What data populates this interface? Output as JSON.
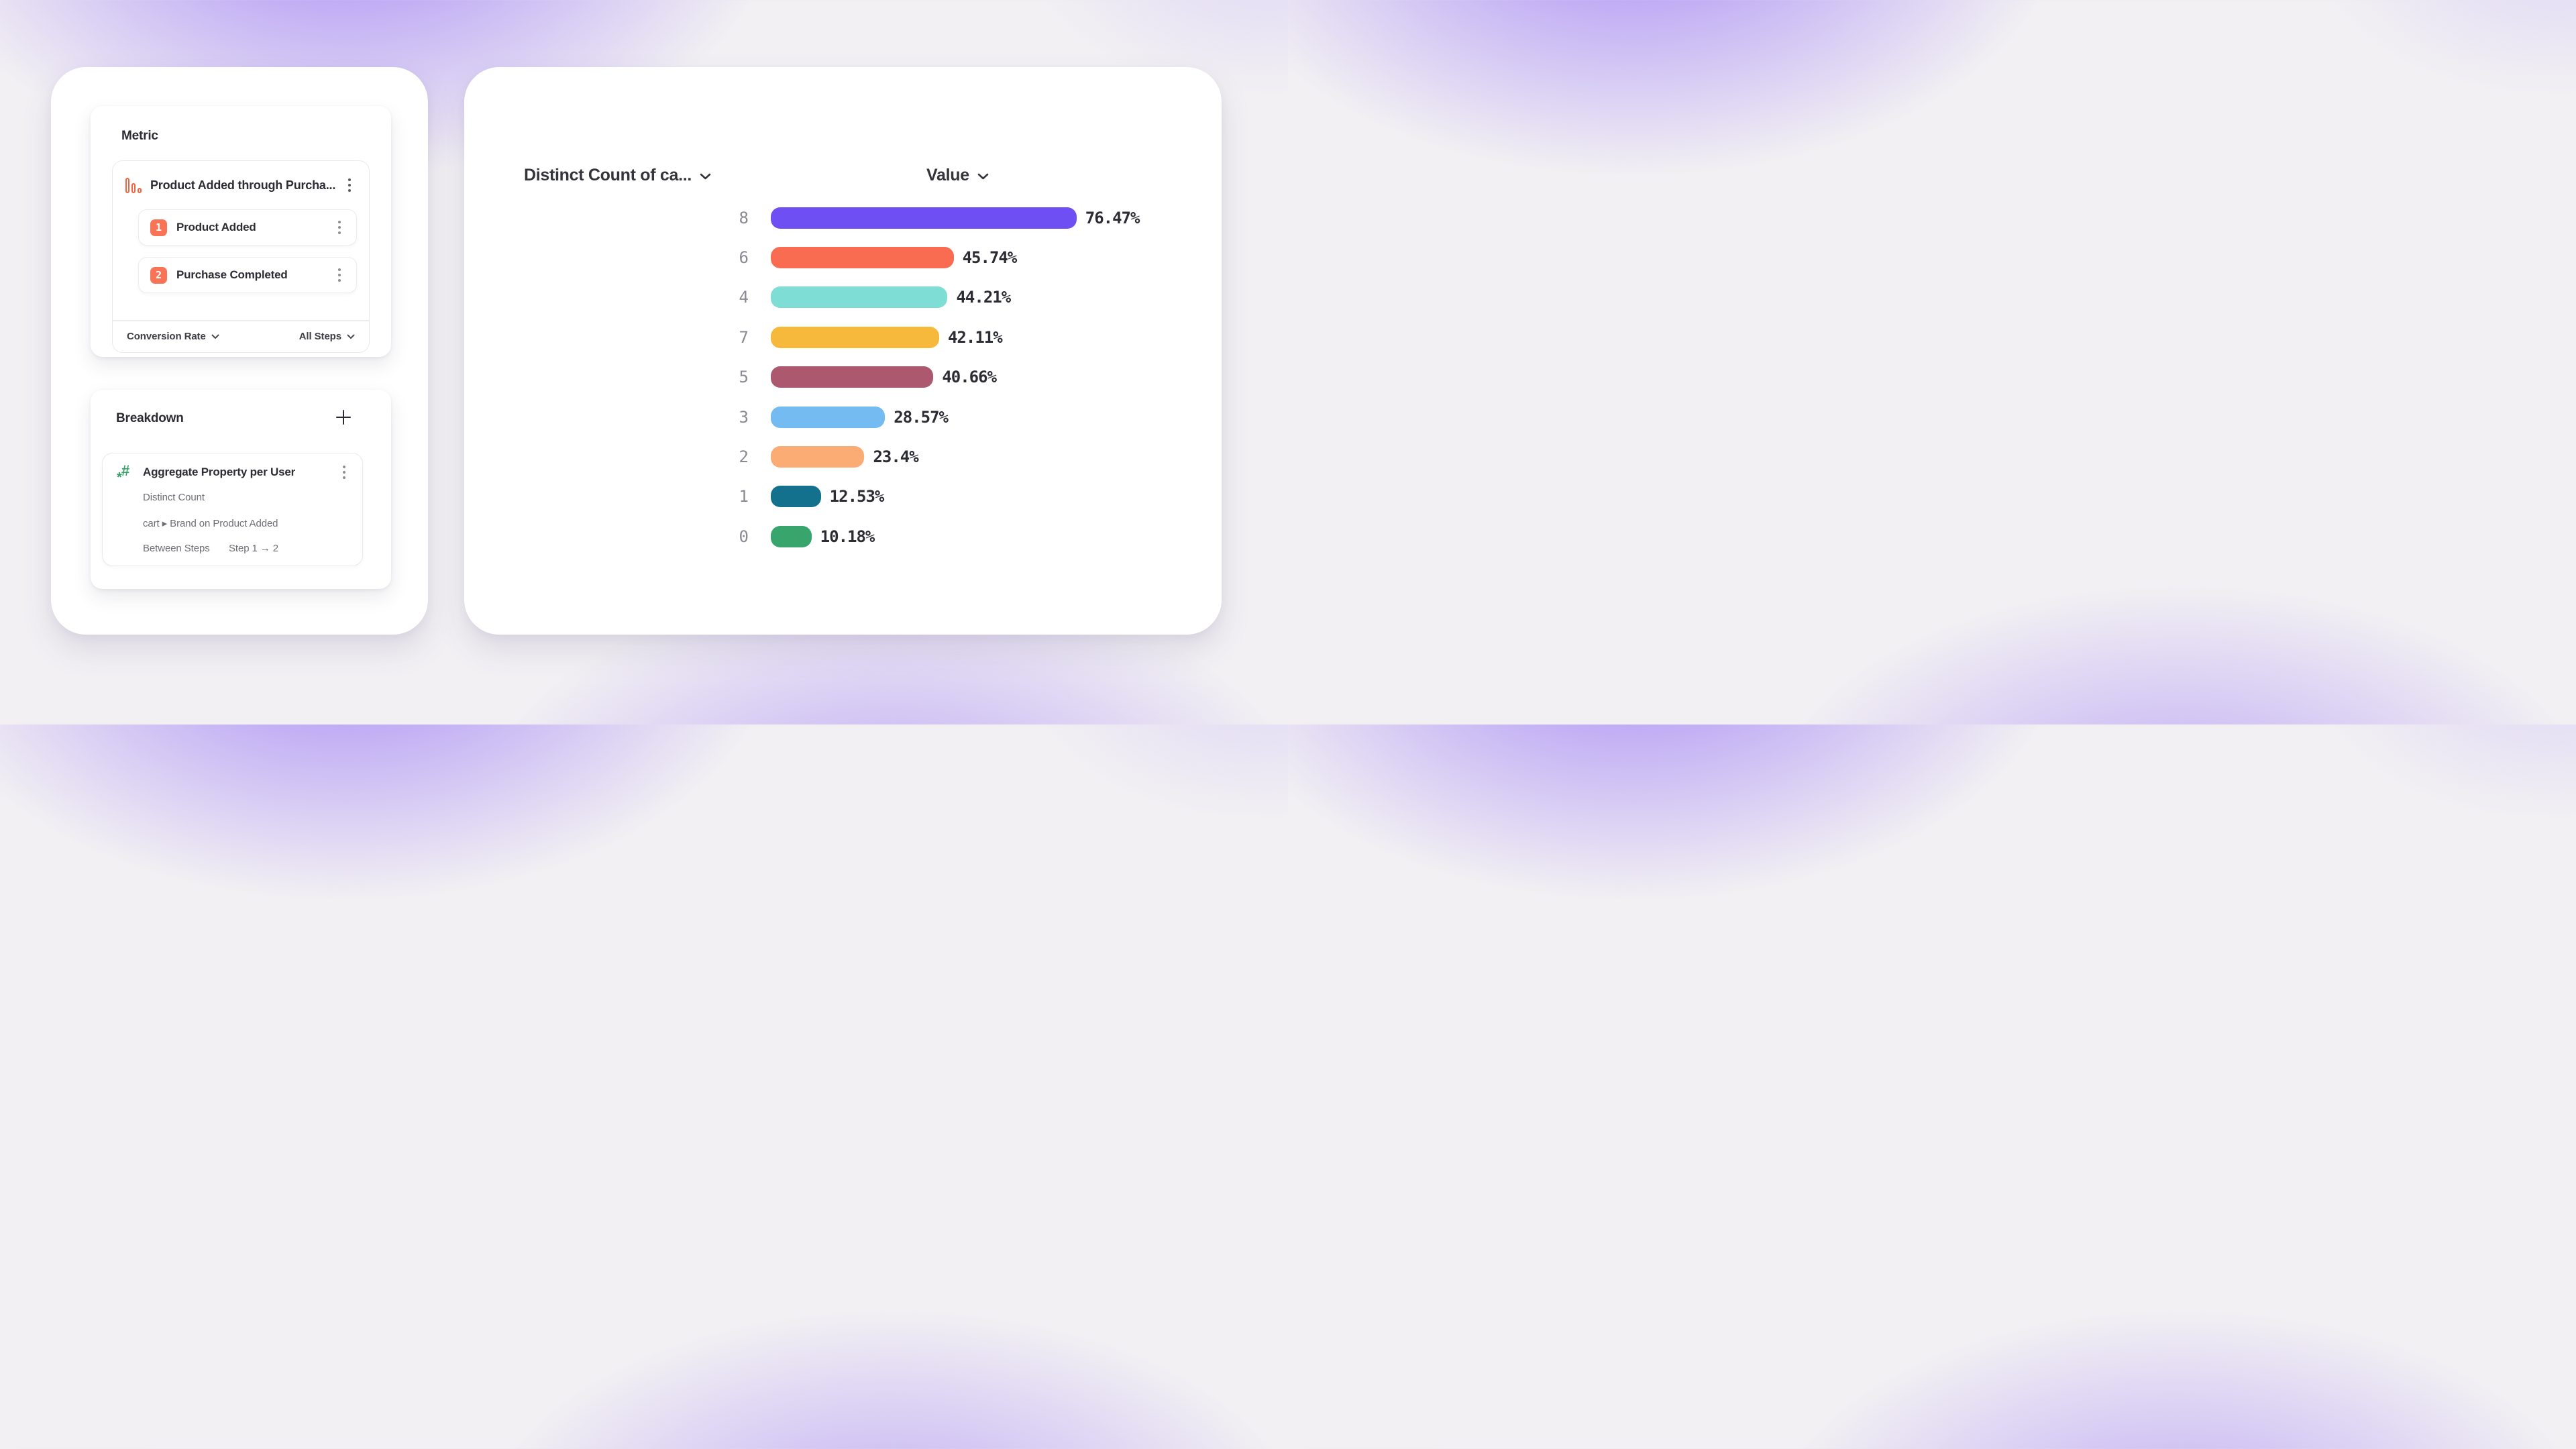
{
  "page": {
    "background_base": "#F2F0F3",
    "glow_color": "#926EF6"
  },
  "metric_panel": {
    "section_label": "Metric",
    "metric": {
      "icon": "funnel-bars-icon",
      "icon_color": "#F4633E",
      "name": "Product Added through Purcha...",
      "steps": [
        {
          "number": "1",
          "label": "Product Added"
        },
        {
          "number": "2",
          "label": "Purchase Completed"
        }
      ],
      "step_badge_color": "#F97457",
      "footer": {
        "measure_dropdown": "Conversion Rate",
        "steps_dropdown": "All Steps"
      }
    }
  },
  "breakdown_panel": {
    "section_label": "Breakdown",
    "add_icon": "plus-icon",
    "item": {
      "icon": "hash-property-icon",
      "icon_glyph": "#",
      "icon_star_glyph": "*",
      "icon_color": "#35A26A",
      "name": "Aggregate Property per User",
      "aggregation": "Distinct Count",
      "property": "cart ▸ Brand on Product Added",
      "scope_label": "Between Steps",
      "scope_value": "Step 1 → 2"
    }
  },
  "chart_data": {
    "type": "bar",
    "orientation": "horizontal",
    "category_header": "Distinct Count of ca...",
    "value_header": "Value",
    "categories": [
      "8",
      "6",
      "4",
      "7",
      "5",
      "3",
      "2",
      "1",
      "0"
    ],
    "values": [
      76.47,
      45.74,
      44.21,
      42.11,
      40.66,
      28.57,
      23.4,
      12.53,
      10.18
    ],
    "value_labels": [
      "76.47%",
      "45.74%",
      "44.21%",
      "42.11%",
      "40.66%",
      "28.57%",
      "23.4%",
      "12.53%",
      "10.18%"
    ],
    "bar_colors": [
      "#6E4FF3",
      "#FA6C52",
      "#7EDDD4",
      "#F6B93C",
      "#AC5970",
      "#73BBF0",
      "#FBAC75",
      "#14718E",
      "#38A56C"
    ],
    "xlim": [
      0,
      100
    ],
    "legend": "none",
    "grid": "off"
  }
}
